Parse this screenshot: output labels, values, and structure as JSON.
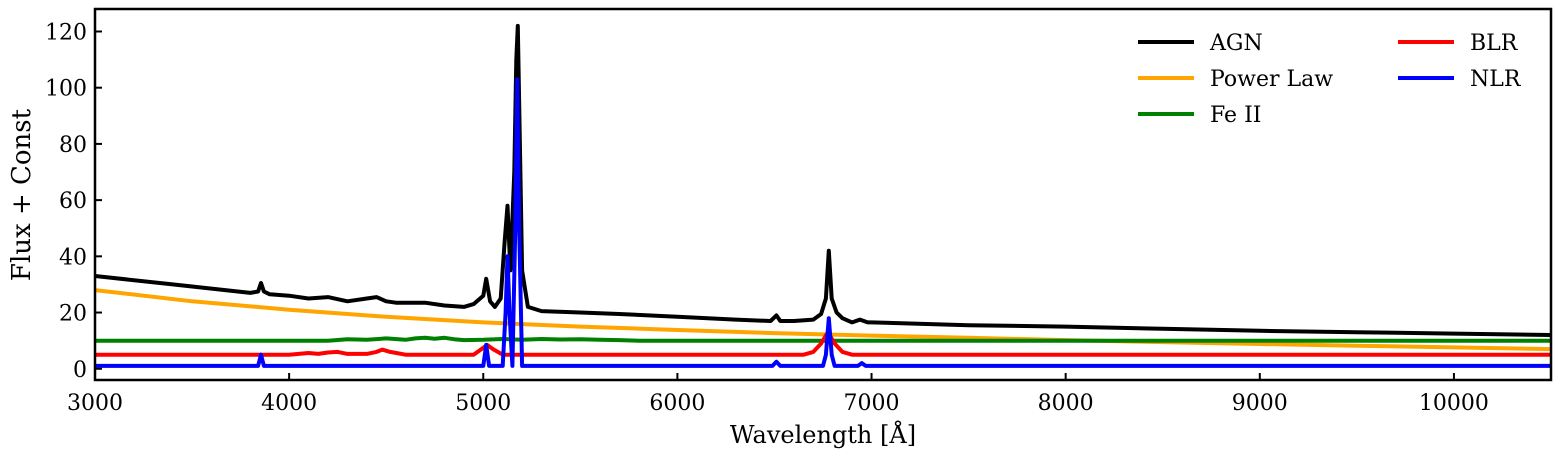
{
  "chart_data": {
    "type": "line",
    "title": "",
    "xlabel": "Wavelength [Å]",
    "ylabel": "Flux + Const",
    "xlim": [
      3000,
      10500
    ],
    "ylim": [
      -4,
      128
    ],
    "xticks": [
      "3000",
      "4000",
      "5000",
      "6000",
      "7000",
      "8000",
      "9000",
      "10000"
    ],
    "yticks": [
      "0",
      "20",
      "40",
      "60",
      "80",
      "100",
      "120"
    ],
    "legend": {
      "placement": "top-right",
      "columns": 2
    },
    "series": [
      {
        "name": "AGN",
        "color": "#000000",
        "x": [
          3000,
          3400,
          3800,
          3840,
          3855,
          3870,
          3900,
          4000,
          4100,
          4200,
          4300,
          4400,
          4450,
          4500,
          4550,
          4600,
          4700,
          4800,
          4900,
          4950,
          5000,
          5015,
          5035,
          5060,
          5090,
          5110,
          5125,
          5140,
          5160,
          5170,
          5178,
          5186,
          5200,
          5230,
          5300,
          5500,
          5700,
          6000,
          6300,
          6480,
          6510,
          6530,
          6600,
          6700,
          6740,
          6765,
          6780,
          6795,
          6820,
          6850,
          6900,
          6940,
          6980,
          7000,
          7500,
          8000,
          8500,
          9000,
          9500,
          10000,
          10500
        ],
        "y": [
          33,
          30,
          27,
          27.5,
          30.5,
          27.5,
          26.5,
          26,
          25,
          25.5,
          24,
          25,
          25.5,
          24,
          23.5,
          23.5,
          23.5,
          22.5,
          22,
          23,
          26,
          32,
          24,
          22,
          25,
          45,
          58,
          35,
          70,
          110,
          122,
          90,
          35,
          22,
          20.5,
          20,
          19.5,
          18.5,
          17.5,
          17,
          19,
          17,
          17,
          17.5,
          19.5,
          25,
          42,
          25,
          20,
          18,
          16.5,
          17.5,
          16.5,
          16.5,
          15.5,
          15,
          14.2,
          13.5,
          13,
          12.5,
          12
        ]
      },
      {
        "name": "Power Law",
        "color": "#FFA500",
        "x": [
          3000,
          3500,
          4000,
          4500,
          5000,
          5500,
          6000,
          6500,
          7000,
          7500,
          8000,
          8500,
          9000,
          9500,
          10000,
          10500
        ],
        "y": [
          28,
          24,
          21,
          18.5,
          16.5,
          15,
          13.8,
          12.7,
          11.8,
          11,
          10.2,
          9.5,
          8.8,
          8.2,
          7.6,
          7
        ]
      },
      {
        "name": "Fe II",
        "color": "#008000",
        "x": [
          3000,
          4200,
          4300,
          4400,
          4500,
          4600,
          4650,
          4700,
          4750,
          4800,
          4850,
          4900,
          5000,
          5100,
          5200,
          5300,
          5400,
          5500,
          5600,
          5700,
          5800,
          10500
        ],
        "y": [
          10,
          10,
          10.5,
          10.3,
          10.8,
          10.3,
          10.8,
          11,
          10.7,
          11,
          10.5,
          10.2,
          10.3,
          10.6,
          10.3,
          10.6,
          10.4,
          10.5,
          10.3,
          10.2,
          10,
          10
        ]
      },
      {
        "name": "BLR",
        "color": "#FF0000",
        "x": [
          3000,
          4000,
          4100,
          4150,
          4200,
          4250,
          4300,
          4400,
          4450,
          4480,
          4520,
          4600,
          4950,
          5000,
          5020,
          5050,
          5100,
          6650,
          6700,
          6740,
          6775,
          6810,
          6850,
          6900,
          10500
        ],
        "y": [
          5,
          5,
          5.6,
          5.3,
          5.8,
          6,
          5.3,
          5.3,
          6,
          6.8,
          6,
          5,
          5,
          7.5,
          8.5,
          7,
          5,
          5,
          6,
          9,
          13,
          9,
          6,
          5,
          5
        ]
      },
      {
        "name": "NLR",
        "color": "#0000FF",
        "x": [
          3000,
          3840,
          3855,
          3870,
          5000,
          5015,
          5030,
          5100,
          5115,
          5125,
          5135,
          5150,
          5165,
          5175,
          5185,
          5200,
          6490,
          6510,
          6530,
          6750,
          6765,
          6780,
          6795,
          6810,
          6930,
          6950,
          6970,
          10500
        ],
        "y": [
          1,
          1,
          5,
          1,
          1,
          8.5,
          1,
          1,
          20,
          40,
          20,
          1,
          50,
          103,
          50,
          1,
          1,
          2.5,
          1,
          1,
          5,
          18,
          5,
          1,
          1,
          2,
          1,
          1
        ]
      }
    ]
  }
}
